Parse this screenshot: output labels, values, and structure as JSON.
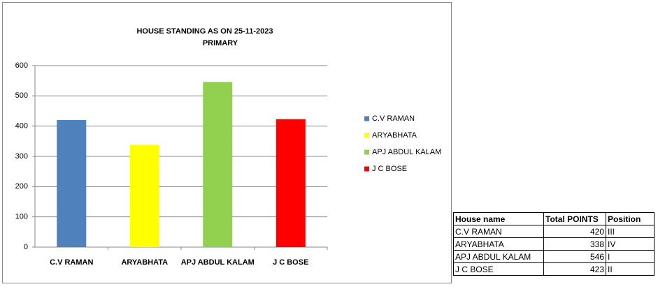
{
  "chart_data": {
    "type": "bar",
    "title": "HOUSE STANDING AS ON 25-11-2023",
    "subtitle": "PRIMARY",
    "categories": [
      "C.V RAMAN",
      "ARYABHATA",
      "APJ ABDUL KALAM",
      "J C BOSE"
    ],
    "values": [
      420,
      338,
      546,
      423
    ],
    "colors": [
      "#4f81bd",
      "#ffff00",
      "#92d050",
      "#ff0000"
    ],
    "ylim": [
      0,
      600
    ],
    "yticks": [
      0,
      100,
      200,
      300,
      400,
      500,
      600
    ],
    "grid": true,
    "legend": "right"
  },
  "table": {
    "header": [
      "House name",
      "Total POINTS",
      "Position"
    ],
    "rows": [
      [
        "C.V RAMAN",
        "420",
        "III"
      ],
      [
        "ARYABHATA",
        "338",
        "IV"
      ],
      [
        "APJ ABDUL KALAM",
        "546",
        "I"
      ],
      [
        "J C BOSE",
        "423",
        "II"
      ]
    ]
  }
}
